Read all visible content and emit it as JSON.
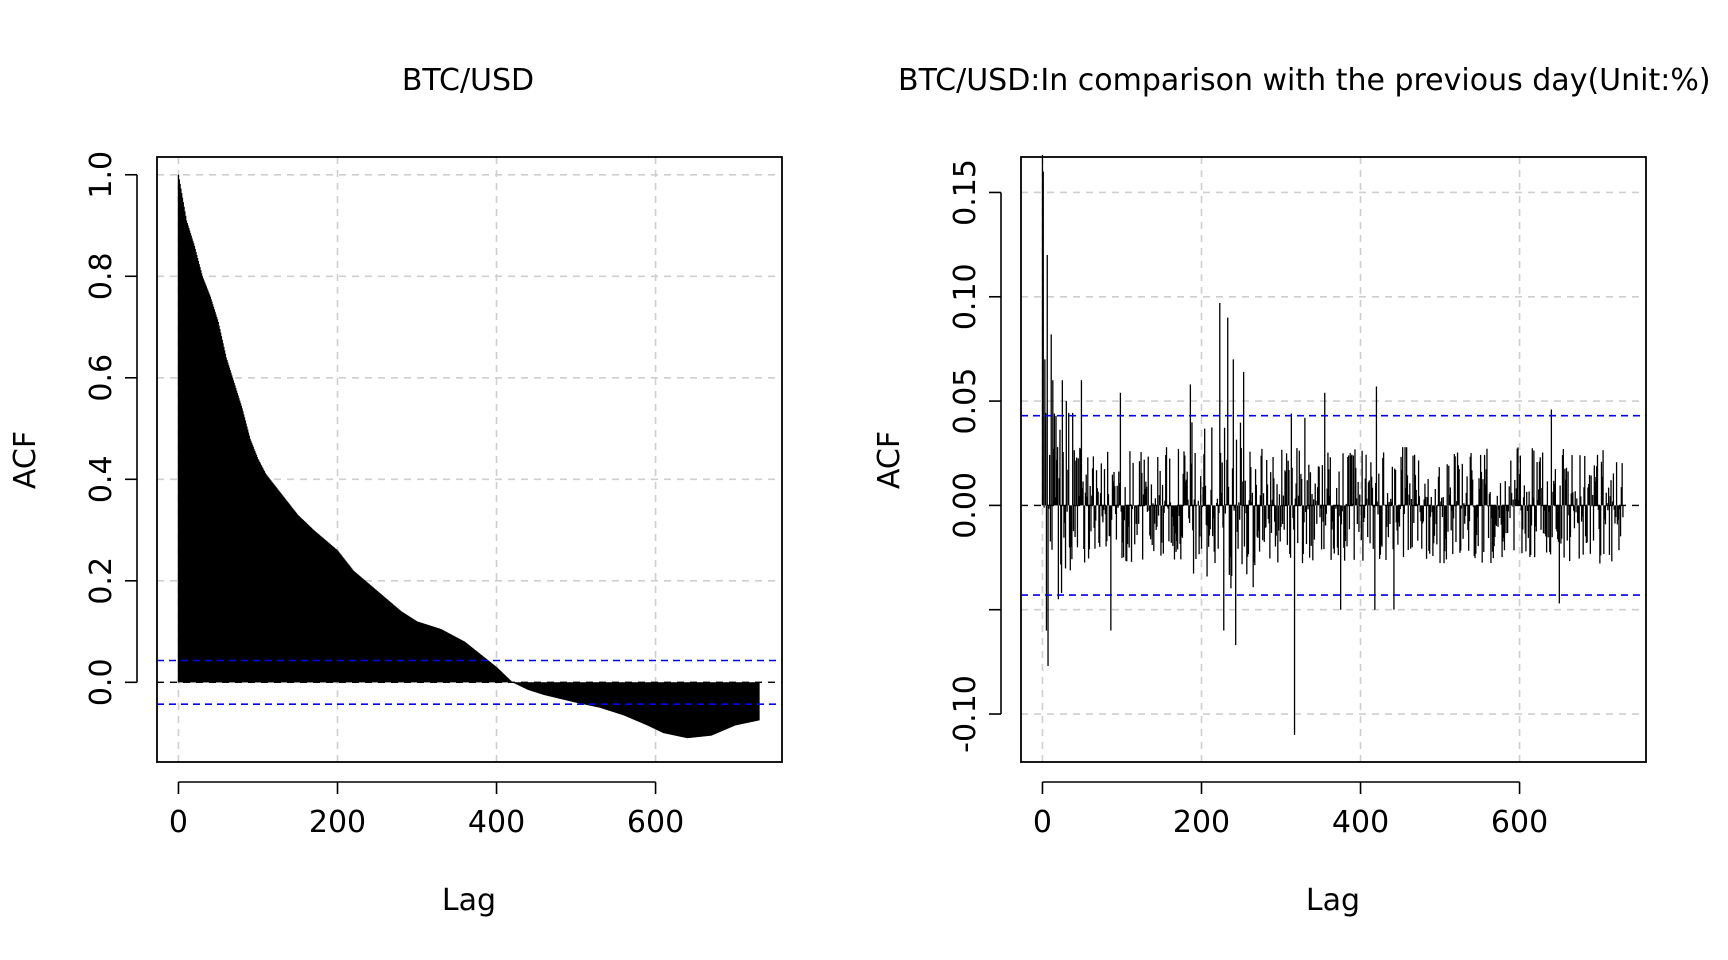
{
  "chart_data": [
    {
      "type": "bar",
      "title": "BTC/USD",
      "xlabel": "Lag",
      "ylabel": "ACF",
      "xlim": [
        -27,
        759
      ],
      "ylim": [
        -0.157,
        1.035
      ],
      "xticks": [
        0,
        200,
        400,
        600
      ],
      "xtick_labels": [
        "0",
        "200",
        "400",
        "600"
      ],
      "yticks": [
        0.0,
        0.2,
        0.4,
        0.6,
        0.8,
        1.0
      ],
      "ytick_labels": [
        "0.0",
        "0.2",
        "0.4",
        "0.6",
        "0.8",
        "1.0"
      ],
      "grid": true,
      "confidence_band": [
        0.043,
        -0.043
      ],
      "acf_curve_knots": [
        [
          0,
          1.0
        ],
        [
          10,
          0.91
        ],
        [
          20,
          0.86
        ],
        [
          30,
          0.8
        ],
        [
          40,
          0.76
        ],
        [
          50,
          0.71
        ],
        [
          60,
          0.64
        ],
        [
          70,
          0.59
        ],
        [
          80,
          0.54
        ],
        [
          90,
          0.48
        ],
        [
          100,
          0.44
        ],
        [
          110,
          0.41
        ],
        [
          120,
          0.39
        ],
        [
          130,
          0.37
        ],
        [
          140,
          0.35
        ],
        [
          150,
          0.33
        ],
        [
          170,
          0.3
        ],
        [
          200,
          0.26
        ],
        [
          220,
          0.22
        ],
        [
          250,
          0.18
        ],
        [
          280,
          0.14
        ],
        [
          300,
          0.12
        ],
        [
          330,
          0.105
        ],
        [
          360,
          0.08
        ],
        [
          400,
          0.03
        ],
        [
          420,
          0.0
        ],
        [
          440,
          -0.015
        ],
        [
          460,
          -0.025
        ],
        [
          500,
          -0.04
        ],
        [
          530,
          -0.05
        ],
        [
          560,
          -0.065
        ],
        [
          590,
          -0.085
        ],
        [
          610,
          -0.1
        ],
        [
          640,
          -0.11
        ],
        [
          670,
          -0.105
        ],
        [
          700,
          -0.085
        ],
        [
          730,
          -0.075
        ]
      ],
      "lag_max": 730
    },
    {
      "type": "bar",
      "title": "BTC/USD:In comparison with the previous day(Unit:%)",
      "xlabel": "Lag",
      "ylabel": "ACF",
      "xlim": [
        -27,
        759
      ],
      "ylim": [
        -0.123,
        0.167
      ],
      "xticks": [
        0,
        200,
        400,
        600
      ],
      "xtick_labels": [
        "0",
        "200",
        "400",
        "600"
      ],
      "yticks": [
        -0.1,
        -0.05,
        0.0,
        0.05,
        0.1,
        0.15
      ],
      "ytick_labels": [
        "-0.10",
        "",
        "0.00",
        "0.05",
        "0.10",
        "0.15"
      ],
      "grid": true,
      "confidence_band": [
        0.043,
        -0.043
      ],
      "lag_max": 730,
      "notable_spikes": [
        [
          1,
          0.16
        ],
        [
          3,
          0.07
        ],
        [
          5,
          -0.06
        ],
        [
          6,
          0.12
        ],
        [
          7,
          -0.077
        ],
        [
          11,
          0.082
        ],
        [
          13,
          0.06
        ],
        [
          20,
          -0.045
        ],
        [
          25,
          0.06
        ],
        [
          30,
          0.05
        ],
        [
          49,
          0.06
        ],
        [
          86,
          -0.06
        ],
        [
          98,
          0.054
        ],
        [
          186,
          0.058
        ],
        [
          223,
          0.097
        ],
        [
          228,
          -0.06
        ],
        [
          233,
          0.09
        ],
        [
          240,
          0.07
        ],
        [
          243,
          -0.067
        ],
        [
          253,
          0.064
        ],
        [
          313,
          0.044
        ],
        [
          317,
          -0.11
        ],
        [
          330,
          0.042
        ],
        [
          355,
          0.054
        ],
        [
          375,
          -0.05
        ],
        [
          418,
          -0.05
        ],
        [
          420,
          0.057
        ],
        [
          442,
          -0.05
        ],
        [
          640,
          0.046
        ],
        [
          650,
          -0.047
        ]
      ]
    }
  ]
}
